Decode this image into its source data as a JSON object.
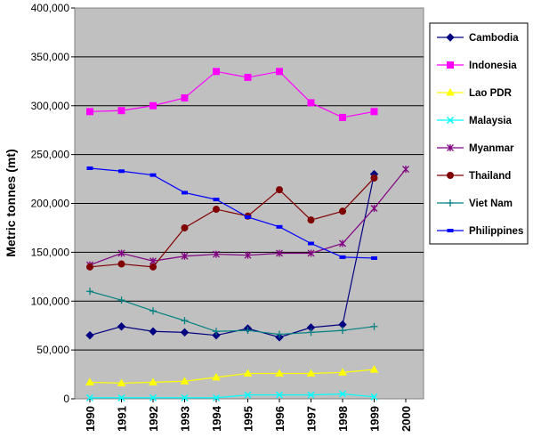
{
  "chart_data": {
    "type": "line",
    "title": "",
    "xlabel": "",
    "ylabel": "Metric tonnes (mt)",
    "categories": [
      "1990",
      "1991",
      "1992",
      "1993",
      "1994",
      "1995",
      "1996",
      "1997",
      "1998",
      "1999",
      "2000"
    ],
    "ylim": [
      0,
      400000
    ],
    "yticks": [
      0,
      50000,
      100000,
      150000,
      200000,
      250000,
      300000,
      350000,
      400000
    ],
    "ytick_labels": [
      "0",
      "50,000",
      "100,000",
      "150,000",
      "200,000",
      "250,000",
      "300,000",
      "350,000",
      "400,000"
    ],
    "grid": "horizontal",
    "legend_position": "right",
    "plot_background": "#c0c0c0",
    "series": [
      {
        "name": "Cambodia",
        "color": "#000080",
        "marker": "diamond",
        "values": [
          65000,
          74000,
          69000,
          68000,
          65000,
          72000,
          63000,
          73000,
          76000,
          230000,
          null
        ]
      },
      {
        "name": "Indonesia",
        "color": "#ff00ff",
        "marker": "square",
        "values": [
          294000,
          295000,
          300000,
          308000,
          335000,
          329000,
          335000,
          303000,
          288000,
          294000,
          null
        ]
      },
      {
        "name": "Lao PDR",
        "color": "#ffff00",
        "marker": "triangle",
        "values": [
          17000,
          16000,
          17000,
          18000,
          22000,
          26000,
          26000,
          26000,
          27000,
          30000,
          null
        ]
      },
      {
        "name": "Malaysia",
        "color": "#00ffff",
        "marker": "x",
        "values": [
          1000,
          1000,
          1000,
          1000,
          1000,
          4000,
          4000,
          4000,
          5000,
          2000,
          null
        ]
      },
      {
        "name": "Myanmar",
        "color": "#800080",
        "marker": "star",
        "values": [
          137000,
          149000,
          141000,
          146000,
          148000,
          147000,
          149000,
          149000,
          159000,
          195000,
          235000
        ]
      },
      {
        "name": "Thailand",
        "color": "#800000",
        "marker": "circle",
        "values": [
          135000,
          138000,
          135000,
          175000,
          194000,
          187000,
          214000,
          183000,
          192000,
          226000,
          null
        ]
      },
      {
        "name": "Viet Nam",
        "color": "#008080",
        "marker": "plus",
        "values": [
          110000,
          101000,
          90000,
          80000,
          69000,
          70000,
          66000,
          68000,
          70000,
          74000,
          null
        ]
      },
      {
        "name": "Philippines",
        "color": "#0000ff",
        "marker": "dash",
        "values": [
          236000,
          233000,
          229000,
          211000,
          204000,
          186000,
          176000,
          159000,
          145000,
          144000,
          null
        ]
      }
    ]
  }
}
